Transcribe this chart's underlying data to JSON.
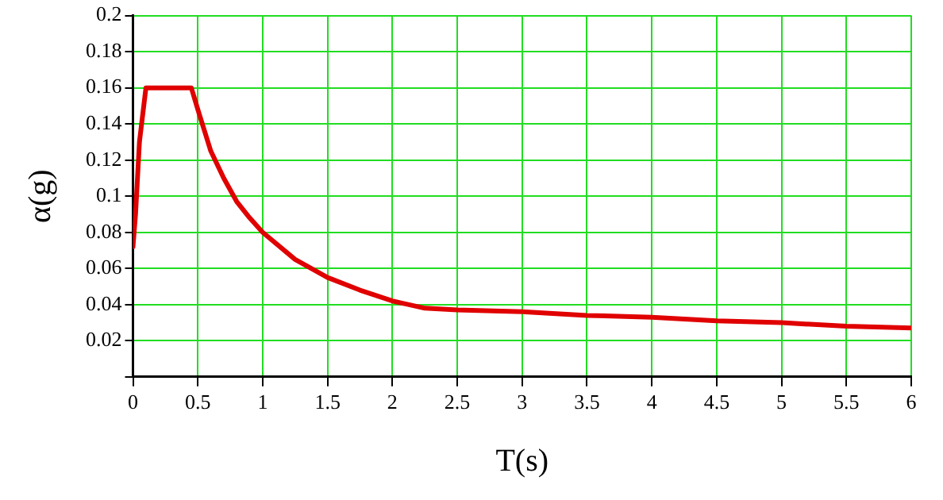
{
  "chart_data": {
    "type": "line",
    "xlabel": "T(s)",
    "ylabel": "α(g)",
    "x": [
      0,
      0.02,
      0.05,
      0.1,
      0.45,
      0.5,
      0.6,
      0.7,
      0.8,
      0.9,
      1,
      1.25,
      1.5,
      1.75,
      2,
      2.25,
      2.5,
      3,
      3.5,
      4,
      4.5,
      5,
      5.5,
      6
    ],
    "series": [
      {
        "color": "#e00000",
        "values": [
          0.072,
          0.09,
          0.13,
          0.16,
          0.16,
          0.148,
          0.125,
          0.11,
          0.097,
          0.088,
          0.08,
          0.065,
          0.055,
          0.048,
          0.042,
          0.038,
          0.037,
          0.036,
          0.034,
          0.033,
          0.031,
          0.03,
          0.028,
          0.027
        ]
      }
    ],
    "xlim": [
      0,
      6
    ],
    "xticks": [
      0,
      0.5,
      1,
      1.5,
      2,
      2.5,
      3,
      3.5,
      4,
      4.5,
      5,
      5.5,
      6
    ],
    "ylim": [
      0,
      0.2
    ],
    "yticks": [
      {
        "value": 0,
        "label": null
      },
      0.02,
      0.04,
      0.06,
      0.08,
      0.1,
      0.12,
      0.14,
      0.16,
      0.18,
      0.2
    ],
    "grid": true,
    "legend": false,
    "marker": "none",
    "line_style": "solid"
  }
}
